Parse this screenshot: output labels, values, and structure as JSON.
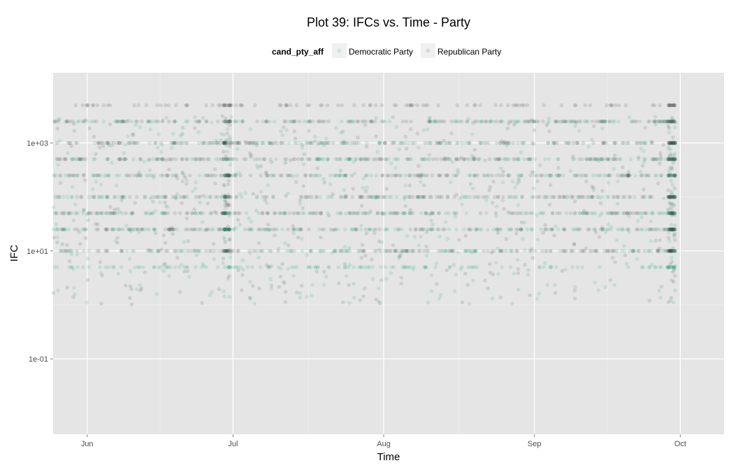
{
  "chart_data": {
    "type": "scatter",
    "title": "Plot 39: IFCs vs. Time - Party",
    "xlabel": "Time",
    "ylabel": "IFC",
    "x_axis": {
      "type": "date",
      "range": [
        "2016-05-25",
        "2016-10-10"
      ],
      "ticks": [
        {
          "value": "2016-06-01",
          "label": "Jun"
        },
        {
          "value": "2016-07-01",
          "label": "Jul"
        },
        {
          "value": "2016-08-01",
          "label": "Aug"
        },
        {
          "value": "2016-09-01",
          "label": "Sep"
        },
        {
          "value": "2016-10-01",
          "label": "Oct"
        }
      ]
    },
    "y_axis": {
      "scale": "log10",
      "range": [
        0.004,
        20000
      ],
      "ticks": [
        {
          "value": 0.1,
          "label": "1e-01"
        },
        {
          "value": 10,
          "label": "1e+01"
        },
        {
          "value": 1000,
          "label": "1e+03"
        }
      ]
    },
    "grid": true,
    "legend": {
      "title": "cand_pty_aff",
      "position": "top",
      "entries": [
        {
          "name": "Democratic Party",
          "color": "#1b9e77"
        },
        {
          "name": "Republican Party",
          "color": "#4d4d4d"
        }
      ]
    },
    "marker_opacity": 0.15,
    "series": [
      {
        "name": "Democratic Party",
        "color": "#1b9e77",
        "common_values": [
          2500,
          1000,
          500,
          250,
          100,
          50,
          25,
          10,
          5
        ],
        "x_range": [
          "2016-05-25",
          "2016-09-30"
        ],
        "note": "many thousands of semi-transparent points, denser near Jun 30 and late Sep"
      },
      {
        "name": "Republican Party",
        "color": "#4d4d4d",
        "common_values": [
          5000,
          2500,
          1000,
          500,
          250,
          100,
          50,
          25,
          10
        ],
        "x_range": [
          "2016-05-25",
          "2016-09-30"
        ],
        "note": "many thousands of semi-transparent points, denser near Jun 30 and Sep 30"
      }
    ]
  }
}
